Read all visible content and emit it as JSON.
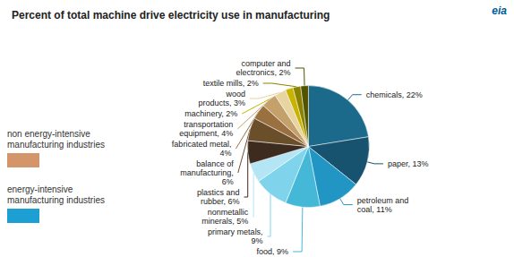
{
  "chart_data": {
    "type": "pie",
    "title": "Percent of total machine drive electricity use in manufacturing",
    "series": [
      {
        "name": "energy-intensive\nmanufacturing industries",
        "color": "#1E9FD4",
        "categories": [
          "chemicals, 22%",
          "paper, 13%",
          "petroleum and\ncoal, 11%",
          "food, 9%",
          "primary metals,\n9%",
          "nonmetallic\nminerals, 5%"
        ],
        "values": [
          22,
          13,
          11,
          9,
          9,
          5
        ],
        "colors": [
          "#1B6A8C",
          "#17536E",
          "#2196C4",
          "#45B8D8",
          "#7FD4EC",
          "#B3E5F5"
        ]
      },
      {
        "name": "non energy-intensive\nmanufacturing industries",
        "color": "#D4956A",
        "categories": [
          "plastics and\nrubber, 6%",
          "balance of\nmanufacturing,\n6%",
          "fabricated metal,\n4%",
          "transportation\nequipment, 4%",
          "wood\nproducts, 3%",
          "machinery, 2%",
          "textile mills, 2%",
          "computer and\nelectronics, 2%"
        ],
        "values": [
          6,
          6,
          4,
          4,
          3,
          2,
          2,
          2
        ],
        "colors": [
          "#3D2B1F",
          "#6B4E2A",
          "#9B7040",
          "#C4A06A",
          "#E8D4A0",
          "#C8B400",
          "#8B8200",
          "#525200"
        ]
      }
    ],
    "legend": "lower left",
    "annotations": [
      {
        "text": "eia",
        "color": "#005B99"
      }
    ]
  }
}
